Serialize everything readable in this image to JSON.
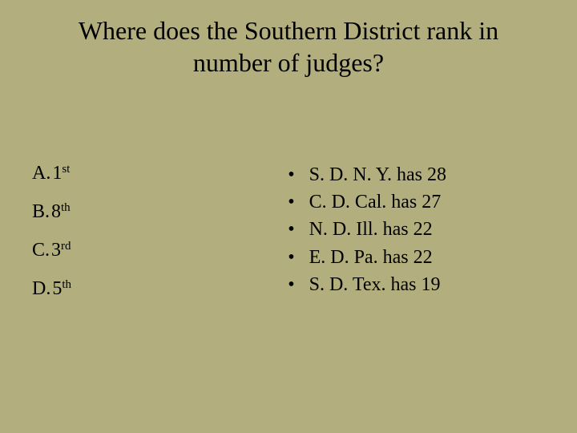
{
  "background_color": "#b2ae7e",
  "text_color": "#000000",
  "title": "Where does the Southern District rank in number of judges?",
  "title_fontsize": 32,
  "body_fontsize": 24,
  "ordinal_fontsize": 15,
  "options": [
    {
      "letter": "A.",
      "num": "1",
      "ord": "st"
    },
    {
      "letter": "B.",
      "num": "8",
      "ord": "th"
    },
    {
      "letter": "C.",
      "num": "3",
      "ord": "rd"
    },
    {
      "letter": "D.",
      "num": "5",
      "ord": "th"
    }
  ],
  "facts": [
    "S. D. N. Y. has 28",
    "C. D. Cal. has 27",
    "N. D. Ill. has 22",
    "E. D. Pa. has 22",
    "S. D. Tex. has 19"
  ],
  "bullet_char": "•"
}
